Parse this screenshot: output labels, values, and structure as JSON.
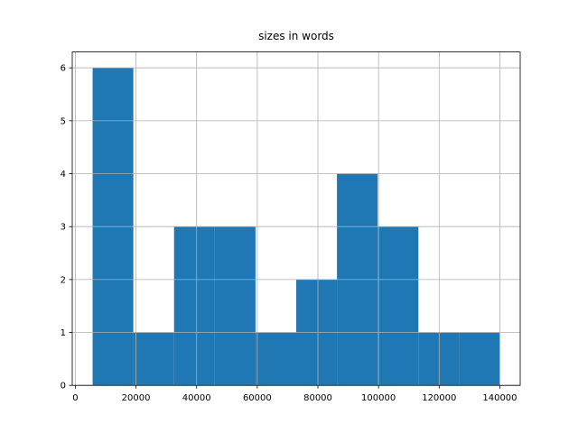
{
  "chart_data": {
    "type": "histogram",
    "title": "sizes in words",
    "bins": [
      5700,
      19130,
      32560,
      45990,
      59420,
      72850,
      86280,
      99710,
      113140,
      126570,
      140000
    ],
    "values": [
      6,
      1,
      3,
      3,
      1,
      2,
      4,
      3,
      1,
      1
    ],
    "color": "#1f77b4",
    "xlim": [
      -1015,
      146715
    ],
    "xticks": [
      0,
      20000,
      40000,
      60000,
      80000,
      100000,
      120000,
      140000
    ],
    "ylim": [
      0,
      6.3
    ],
    "yticks": [
      0,
      1,
      2,
      3,
      4,
      5,
      6
    ],
    "grid": true
  }
}
